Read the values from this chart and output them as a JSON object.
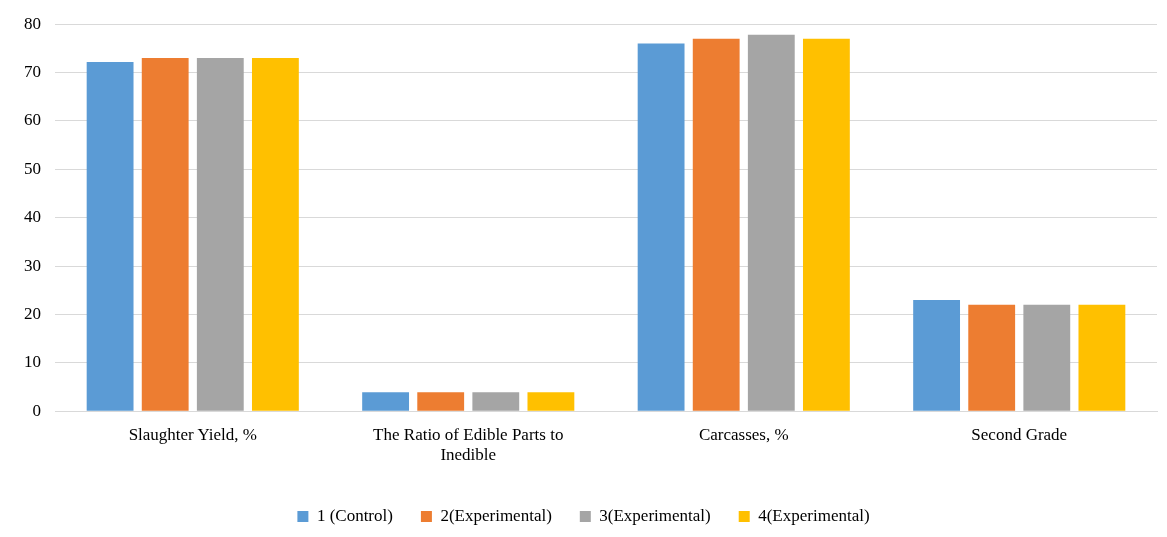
{
  "chart_data": {
    "type": "bar",
    "categories": [
      "Slaughter Yield, %",
      "The Ratio of Edible Parts to Inedible",
      "Carcasses, %",
      "Second Grade"
    ],
    "series": [
      {
        "name": "1 (Control)",
        "color": "#5b9bd5",
        "values": [
          72.2,
          3.9,
          76,
          23
        ]
      },
      {
        "name": "2(Experimental)",
        "color": "#ed7d31",
        "values": [
          73,
          3.9,
          77,
          22
        ]
      },
      {
        "name": "3(Experimental)",
        "color": "#a5a5a5",
        "values": [
          73,
          3.9,
          77.8,
          22
        ]
      },
      {
        "name": "4(Experimental)",
        "color": "#ffc000",
        "values": [
          73,
          3.9,
          77,
          22
        ]
      }
    ],
    "ylim": [
      0,
      80
    ],
    "yticks": [
      0,
      10,
      20,
      30,
      40,
      50,
      60,
      70,
      80
    ],
    "grid": "y",
    "legend": "bottom"
  }
}
